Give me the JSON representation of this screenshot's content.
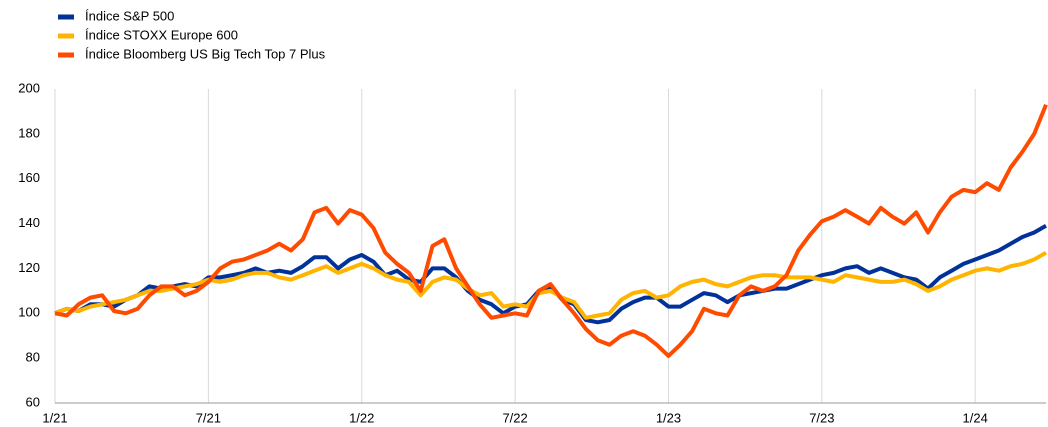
{
  "chart_data": {
    "type": "line",
    "categories": [
      "1/21",
      null,
      null,
      null,
      null,
      null,
      null,
      null,
      null,
      null,
      null,
      null,
      null,
      "7/21",
      null,
      null,
      null,
      null,
      null,
      null,
      null,
      null,
      null,
      null,
      null,
      null,
      "1/22",
      null,
      null,
      null,
      null,
      null,
      null,
      null,
      null,
      null,
      null,
      null,
      null,
      "7/22",
      null,
      null,
      null,
      null,
      null,
      null,
      null,
      null,
      null,
      null,
      null,
      null,
      "1/23",
      null,
      null,
      null,
      null,
      null,
      null,
      null,
      null,
      null,
      null,
      null,
      null,
      "7/23",
      null,
      null,
      null,
      null,
      null,
      null,
      null,
      null,
      null,
      null,
      null,
      null,
      "1/24",
      null,
      null,
      null,
      null,
      null,
      null
    ],
    "series": [
      {
        "name": "Índice S&P 500",
        "color": "#003299",
        "values": [
          100,
          102,
          101,
          104,
          104,
          103,
          106,
          108,
          112,
          111,
          112,
          113,
          112,
          116,
          116,
          117,
          118,
          120,
          118,
          119,
          118,
          121,
          125,
          125,
          120,
          124,
          126,
          123,
          117,
          119,
          115,
          114,
          120,
          120,
          116,
          110,
          106,
          104,
          100,
          103,
          104,
          110,
          112,
          106,
          104,
          97,
          96,
          97,
          102,
          105,
          107,
          107,
          103,
          103,
          106,
          109,
          108,
          105,
          108,
          109,
          110,
          111,
          111,
          113,
          115,
          117,
          118,
          120,
          121,
          118,
          120,
          118,
          116,
          115,
          111,
          116,
          119,
          122,
          124,
          126,
          128,
          131,
          134,
          136,
          139
        ]
      },
      {
        "name": "Índice STOXX Europe 600",
        "color": "#ffb400",
        "values": [
          100,
          102,
          101,
          103,
          104,
          105,
          106,
          108,
          110,
          110,
          111,
          112,
          113,
          115,
          114,
          115,
          117,
          118,
          118,
          116,
          115,
          117,
          119,
          121,
          118,
          120,
          122,
          120,
          117,
          115,
          114,
          108,
          114,
          116,
          115,
          111,
          108,
          109,
          103,
          104,
          103,
          109,
          110,
          107,
          105,
          98,
          99,
          100,
          106,
          109,
          110,
          107,
          108,
          112,
          114,
          115,
          113,
          112,
          114,
          116,
          117,
          117,
          116,
          116,
          116,
          115,
          114,
          117,
          116,
          115,
          114,
          114,
          115,
          113,
          110,
          112,
          115,
          117,
          119,
          120,
          119,
          121,
          122,
          124,
          127
        ]
      },
      {
        "name": "Índice Bloomberg US Big Tech Top 7 Plus",
        "color": "#ff4b00",
        "values": [
          100,
          99,
          104,
          107,
          108,
          101,
          100,
          102,
          108,
          112,
          112,
          108,
          110,
          114,
          120,
          123,
          124,
          126,
          128,
          131,
          128,
          133,
          145,
          147,
          140,
          146,
          144,
          138,
          127,
          122,
          118,
          110,
          130,
          133,
          120,
          112,
          104,
          98,
          99,
          100,
          99,
          110,
          113,
          106,
          100,
          93,
          88,
          86,
          90,
          92,
          90,
          86,
          81,
          86,
          92,
          102,
          100,
          99,
          108,
          112,
          110,
          112,
          117,
          128,
          135,
          141,
          143,
          146,
          143,
          140,
          147,
          143,
          140,
          145,
          136,
          145,
          152,
          155,
          154,
          158,
          155,
          165,
          172,
          180,
          193
        ]
      }
    ],
    "ylim": [
      60,
      200
    ],
    "yticks": [
      60,
      80,
      100,
      120,
      140,
      160,
      180,
      200
    ],
    "grid": true,
    "legend": "top-left"
  }
}
